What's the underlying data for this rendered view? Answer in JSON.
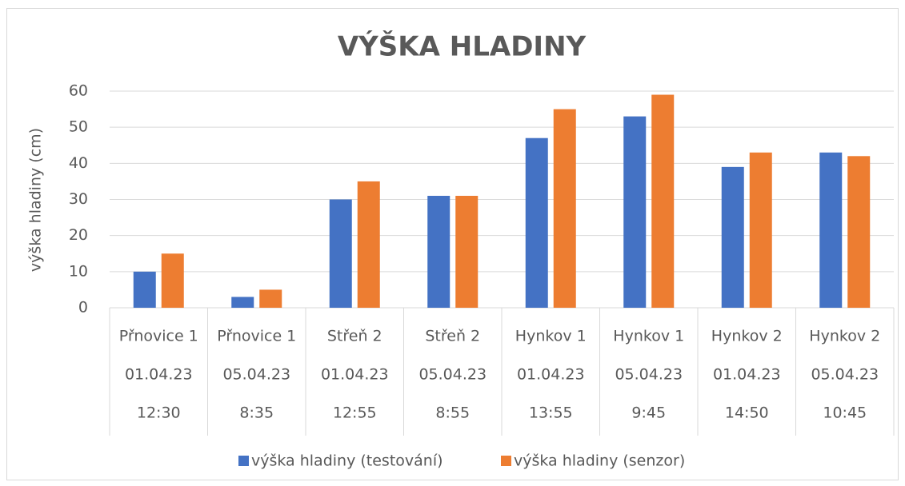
{
  "chart_data": {
    "type": "bar",
    "title": "VÝŠKA HLADINY",
    "y_label": "výška hladiny (cm)",
    "categories": [
      [
        "Přnovice 1",
        "01.04.23",
        "12:30"
      ],
      [
        "Přnovice 1",
        "05.04.23",
        "8:35"
      ],
      [
        "Střeň 2",
        "01.04.23",
        "12:55"
      ],
      [
        "Střeň 2",
        "05.04.23",
        "8:55"
      ],
      [
        "Hynkov 1",
        "01.04.23",
        "13:55"
      ],
      [
        "Hynkov 1",
        "05.04.23",
        "9:45"
      ],
      [
        "Hynkov 2",
        "01.04.23",
        "14:50"
      ],
      [
        "Hynkov 2",
        "05.04.23",
        "10:45"
      ]
    ],
    "series": [
      {
        "name": "výška hladiny (testování)",
        "color": "#4472c4",
        "values": [
          10,
          3,
          30,
          31,
          47,
          53,
          39,
          43
        ]
      },
      {
        "name": "výška hladiny (senzor)",
        "color": "#ed7d31",
        "values": [
          15,
          5,
          35,
          31,
          55,
          59,
          43,
          42
        ]
      }
    ],
    "ylim": [
      0,
      60
    ],
    "yticks": [
      0,
      10,
      20,
      30,
      40,
      50,
      60
    ],
    "grid": true,
    "legend": "bottom"
  }
}
